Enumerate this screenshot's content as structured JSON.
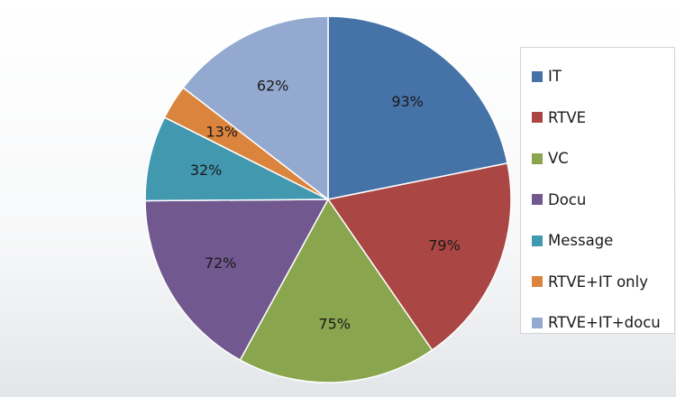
{
  "chart_data": {
    "type": "pie",
    "categories": [
      "IT",
      "RTVE",
      "VC",
      "Docu",
      "Message",
      "RTVE+IT only",
      "RTVE+IT+docu"
    ],
    "values": [
      93,
      79,
      75,
      72,
      32,
      13,
      62
    ],
    "value_labels": [
      "93%",
      "79%",
      "75%",
      "72%",
      "32%",
      "13%",
      "62%"
    ],
    "colors": [
      "#4572A7",
      "#AA4643",
      "#89A54E",
      "#71588F",
      "#4198AF",
      "#DB843D",
      "#93A9CF"
    ],
    "start_angle": "12 o'clock",
    "direction": "clockwise",
    "legend": {
      "placement": "right",
      "entries": [
        "IT",
        "RTVE",
        "VC",
        "Docu",
        "Message",
        "RTVE+IT only",
        "RTVE+IT+docu"
      ]
    }
  }
}
